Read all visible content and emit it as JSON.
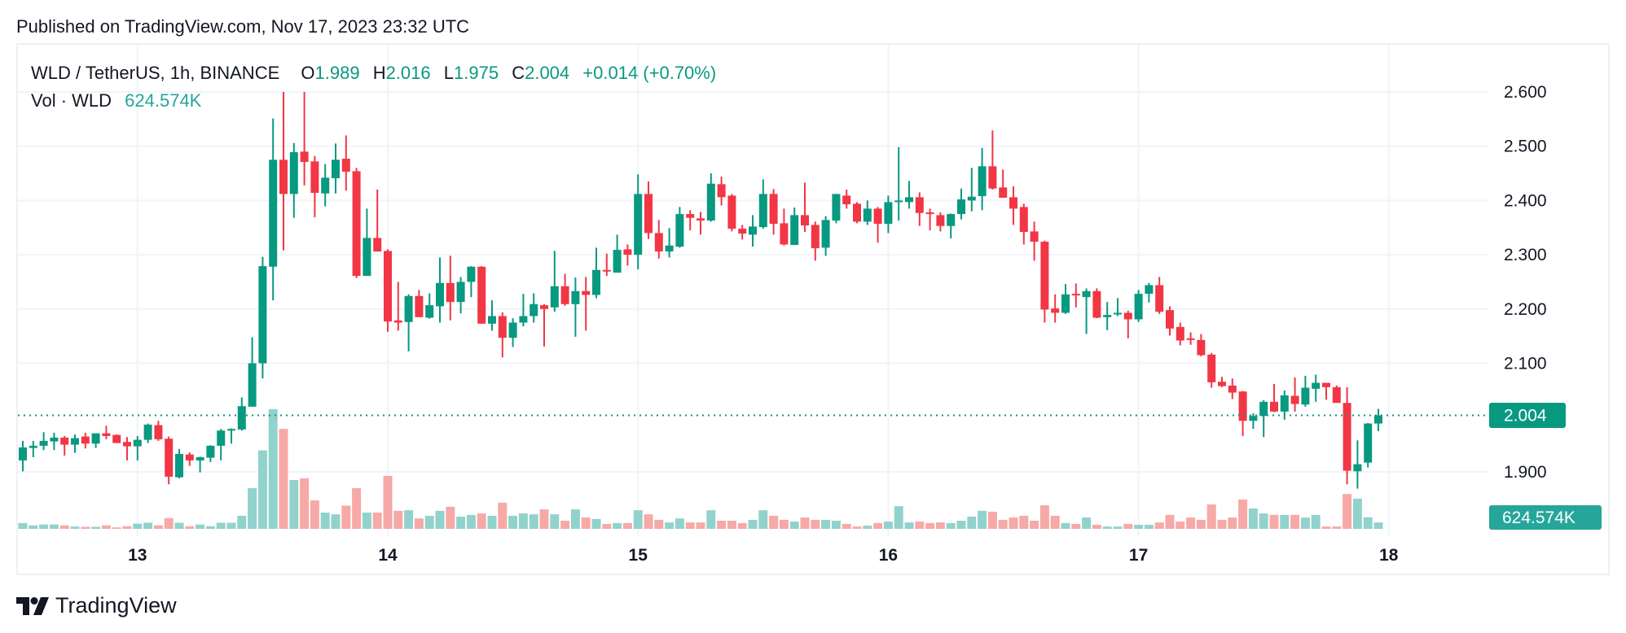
{
  "published": "Published on TradingView.com, Nov 17, 2023 23:32 UTC",
  "legend": {
    "symbol": "WLD / TetherUS, 1h, BINANCE",
    "o_label": "O",
    "o_value": "1.989",
    "h_label": "H",
    "h_value": "2.016",
    "l_label": "L",
    "l_value": "1.975",
    "c_label": "C",
    "c_value": "2.004",
    "change": "+0.014 (+0.70%)",
    "vol_label": "Vol · WLD",
    "vol_value": "624.574K"
  },
  "price_tag": "2.004",
  "volume_tag": "624.574K",
  "footer": {
    "brand": "TradingView"
  },
  "colors": {
    "up": "#089981",
    "down": "#f23645",
    "up_volume": "#92d2cc",
    "down_volume": "#f7a9a7",
    "price_tag": "#089981",
    "volume_tag": "#26a69a",
    "grid": "#f0f3fa"
  },
  "chart_data": {
    "type": "candlestick",
    "interval": "1h",
    "symbol": "WLD / TetherUS",
    "exchange": "BINANCE",
    "ylim": [
      1.85,
      2.61
    ],
    "y_ticks": [
      "2.600",
      "2.500",
      "2.400",
      "2.300",
      "2.200",
      "2.100",
      "1.900"
    ],
    "x_ticks": [
      "13",
      "14",
      "15",
      "16",
      "17",
      "18"
    ],
    "grid": true,
    "last_price": 2.004,
    "ohlc_columns": [
      "open",
      "high",
      "low",
      "close"
    ],
    "ohlc": [
      [
        1.921,
        1.957,
        1.901,
        1.945
      ],
      [
        1.944,
        1.957,
        1.927,
        1.948
      ],
      [
        1.948,
        1.973,
        1.94,
        1.957
      ],
      [
        1.956,
        1.972,
        1.94,
        1.963
      ],
      [
        1.963,
        1.966,
        1.93,
        1.95
      ],
      [
        1.95,
        1.969,
        1.935,
        1.962
      ],
      [
        1.965,
        1.972,
        1.943,
        1.952
      ],
      [
        1.952,
        1.971,
        1.944,
        1.971
      ],
      [
        1.971,
        1.985,
        1.96,
        1.966
      ],
      [
        1.968,
        1.969,
        1.953,
        1.953
      ],
      [
        1.955,
        1.964,
        1.921,
        1.947
      ],
      [
        1.947,
        1.966,
        1.921,
        1.959
      ],
      [
        1.959,
        1.989,
        1.953,
        1.987
      ],
      [
        1.986,
        1.994,
        1.957,
        1.96
      ],
      [
        1.961,
        1.965,
        1.877,
        1.891
      ],
      [
        1.89,
        1.942,
        1.888,
        1.933
      ],
      [
        1.932,
        1.936,
        1.911,
        1.921
      ],
      [
        1.921,
        1.928,
        1.899,
        1.927
      ],
      [
        1.926,
        1.949,
        1.918,
        1.948
      ],
      [
        1.948,
        1.979,
        1.921,
        1.976
      ],
      [
        1.977,
        1.98,
        1.952,
        1.979
      ],
      [
        1.978,
        2.037,
        1.976,
        2.021
      ],
      [
        2.02,
        2.148,
        2.02,
        2.1
      ],
      [
        2.1,
        2.296,
        2.072,
        2.279
      ],
      [
        2.278,
        2.551,
        2.216,
        2.475
      ],
      [
        2.475,
        2.601,
        2.308,
        2.412
      ],
      [
        2.412,
        2.506,
        2.368,
        2.489
      ],
      [
        2.49,
        2.601,
        2.428,
        2.471
      ],
      [
        2.472,
        2.482,
        2.369,
        2.414
      ],
      [
        2.413,
        2.467,
        2.389,
        2.442
      ],
      [
        2.441,
        2.505,
        2.413,
        2.475
      ],
      [
        2.477,
        2.52,
        2.418,
        2.453
      ],
      [
        2.454,
        2.46,
        2.257,
        2.261
      ],
      [
        2.261,
        2.385,
        2.261,
        2.331
      ],
      [
        2.331,
        2.42,
        2.306,
        2.306
      ],
      [
        2.307,
        2.31,
        2.158,
        2.177
      ],
      [
        2.179,
        2.25,
        2.16,
        2.175
      ],
      [
        2.176,
        2.227,
        2.122,
        2.224
      ],
      [
        2.224,
        2.235,
        2.185,
        2.185
      ],
      [
        2.184,
        2.229,
        2.182,
        2.207
      ],
      [
        2.205,
        2.295,
        2.175,
        2.248
      ],
      [
        2.248,
        2.298,
        2.179,
        2.213
      ],
      [
        2.213,
        2.259,
        2.192,
        2.25
      ],
      [
        2.25,
        2.279,
        2.222,
        2.278
      ],
      [
        2.278,
        2.279,
        2.173,
        2.173
      ],
      [
        2.173,
        2.216,
        2.16,
        2.187
      ],
      [
        2.187,
        2.194,
        2.111,
        2.147
      ],
      [
        2.147,
        2.183,
        2.13,
        2.175
      ],
      [
        2.175,
        2.228,
        2.168,
        2.187
      ],
      [
        2.187,
        2.229,
        2.175,
        2.209
      ],
      [
        2.207,
        2.209,
        2.131,
        2.2
      ],
      [
        2.203,
        2.307,
        2.195,
        2.242
      ],
      [
        2.242,
        2.265,
        2.206,
        2.209
      ],
      [
        2.209,
        2.258,
        2.149,
        2.233
      ],
      [
        2.233,
        2.259,
        2.16,
        2.226
      ],
      [
        2.226,
        2.313,
        2.22,
        2.272
      ],
      [
        2.272,
        2.302,
        2.261,
        2.269
      ],
      [
        2.267,
        2.337,
        2.267,
        2.309
      ],
      [
        2.31,
        2.319,
        2.28,
        2.3
      ],
      [
        2.3,
        2.448,
        2.273,
        2.412
      ],
      [
        2.412,
        2.435,
        2.329,
        2.34
      ],
      [
        2.34,
        2.364,
        2.293,
        2.306
      ],
      [
        2.306,
        2.349,
        2.295,
        2.317
      ],
      [
        2.315,
        2.388,
        2.313,
        2.375
      ],
      [
        2.375,
        2.382,
        2.345,
        2.368
      ],
      [
        2.367,
        2.379,
        2.337,
        2.363
      ],
      [
        2.363,
        2.45,
        2.361,
        2.431
      ],
      [
        2.43,
        2.444,
        2.391,
        2.406
      ],
      [
        2.409,
        2.412,
        2.343,
        2.348
      ],
      [
        2.348,
        2.355,
        2.328,
        2.339
      ],
      [
        2.337,
        2.373,
        2.315,
        2.352
      ],
      [
        2.351,
        2.439,
        2.348,
        2.412
      ],
      [
        2.412,
        2.421,
        2.337,
        2.357
      ],
      [
        2.358,
        2.385,
        2.317,
        2.319
      ],
      [
        2.318,
        2.387,
        2.318,
        2.373
      ],
      [
        2.373,
        2.433,
        2.342,
        2.354
      ],
      [
        2.355,
        2.361,
        2.289,
        2.312
      ],
      [
        2.313,
        2.371,
        2.298,
        2.364
      ],
      [
        2.363,
        2.412,
        2.358,
        2.412
      ],
      [
        2.409,
        2.42,
        2.385,
        2.393
      ],
      [
        2.394,
        2.397,
        2.358,
        2.361
      ],
      [
        2.361,
        2.4,
        2.355,
        2.385
      ],
      [
        2.385,
        2.388,
        2.322,
        2.357
      ],
      [
        2.357,
        2.409,
        2.34,
        2.397
      ],
      [
        2.397,
        2.498,
        2.363,
        2.4
      ],
      [
        2.397,
        2.436,
        2.385,
        2.406
      ],
      [
        2.406,
        2.415,
        2.353,
        2.377
      ],
      [
        2.378,
        2.385,
        2.345,
        2.376
      ],
      [
        2.373,
        2.378,
        2.343,
        2.353
      ],
      [
        2.353,
        2.376,
        2.33,
        2.375
      ],
      [
        2.375,
        2.422,
        2.365,
        2.402
      ],
      [
        2.4,
        2.46,
        2.38,
        2.407
      ],
      [
        2.408,
        2.497,
        2.382,
        2.463
      ],
      [
        2.463,
        2.529,
        2.42,
        2.422
      ],
      [
        2.424,
        2.457,
        2.405,
        2.405
      ],
      [
        2.406,
        2.426,
        2.355,
        2.385
      ],
      [
        2.388,
        2.394,
        2.319,
        2.342
      ],
      [
        2.343,
        2.361,
        2.289,
        2.324
      ],
      [
        2.324,
        2.326,
        2.175,
        2.199
      ],
      [
        2.201,
        2.227,
        2.175,
        2.193
      ],
      [
        2.193,
        2.246,
        2.191,
        2.227
      ],
      [
        2.228,
        2.247,
        2.203,
        2.226
      ],
      [
        2.222,
        2.238,
        2.154,
        2.233
      ],
      [
        2.233,
        2.238,
        2.183,
        2.184
      ],
      [
        2.185,
        2.213,
        2.161,
        2.189
      ],
      [
        2.19,
        2.22,
        2.187,
        2.193
      ],
      [
        2.193,
        2.197,
        2.146,
        2.181
      ],
      [
        2.181,
        2.235,
        2.176,
        2.228
      ],
      [
        2.228,
        2.248,
        2.212,
        2.244
      ],
      [
        2.244,
        2.259,
        2.191,
        2.195
      ],
      [
        2.198,
        2.205,
        2.151,
        2.164
      ],
      [
        2.167,
        2.175,
        2.133,
        2.142
      ],
      [
        2.146,
        2.157,
        2.134,
        2.143
      ],
      [
        2.143,
        2.154,
        2.113,
        2.115
      ],
      [
        2.116,
        2.119,
        2.055,
        2.065
      ],
      [
        2.066,
        2.075,
        2.056,
        2.058
      ],
      [
        2.059,
        2.072,
        2.034,
        2.046
      ],
      [
        2.048,
        2.049,
        1.966,
        1.994
      ],
      [
        1.994,
        2.008,
        1.979,
        2.003
      ],
      [
        2.003,
        2.032,
        1.964,
        2.029
      ],
      [
        2.029,
        2.062,
        2.01,
        2.011
      ],
      [
        2.011,
        2.05,
        1.996,
        2.041
      ],
      [
        2.04,
        2.074,
        2.011,
        2.025
      ],
      [
        2.024,
        2.077,
        2.02,
        2.055
      ],
      [
        2.053,
        2.079,
        2.029,
        2.064
      ],
      [
        2.064,
        2.064,
        2.033,
        2.056
      ],
      [
        2.056,
        2.059,
        2.027,
        2.027
      ],
      [
        2.027,
        2.056,
        1.877,
        1.902
      ],
      [
        1.901,
        1.958,
        1.869,
        1.914
      ],
      [
        1.917,
        1.99,
        1.908,
        1.989
      ],
      [
        1.989,
        2.016,
        1.975,
        2.004
      ]
    ],
    "volume_unit": "K",
    "volume": [
      568,
      341,
      426,
      426,
      341,
      227,
      199,
      199,
      341,
      142,
      256,
      511,
      596,
      341,
      1051,
      596,
      256,
      426,
      256,
      596,
      596,
      1278,
      3976,
      7668,
      11701,
      9770,
      4771,
      4942,
      2783,
      1590,
      1420,
      2272,
      3976,
      1590,
      1590,
      5169,
      1761,
      1818,
      1022,
      1278,
      1761,
      2158,
      1193,
      1363,
      1505,
      1278,
      2556,
      1278,
      1505,
      1420,
      1903,
      1420,
      795,
      1903,
      1108,
      966,
      483,
      568,
      568,
      1818,
      1420,
      880,
      625,
      1022,
      625,
      625,
      1818,
      795,
      795,
      568,
      880,
      1818,
      1278,
      880,
      710,
      1108,
      880,
      880,
      795,
      483,
      227,
      312,
      568,
      710,
      2215,
      625,
      710,
      568,
      625,
      568,
      795,
      1193,
      1761,
      1676,
      880,
      1108,
      1278,
      795,
      2300,
      1278,
      568,
      483,
      1108,
      398,
      227,
      227,
      483,
      398,
      398,
      625,
      1363,
      710,
      1108,
      880,
      2386,
      880,
      1108,
      2868,
      1988,
      1505,
      1363,
      1363,
      1363,
      1108,
      1363,
      227,
      227,
      3408,
      2954,
      1136,
      624.574
    ]
  }
}
